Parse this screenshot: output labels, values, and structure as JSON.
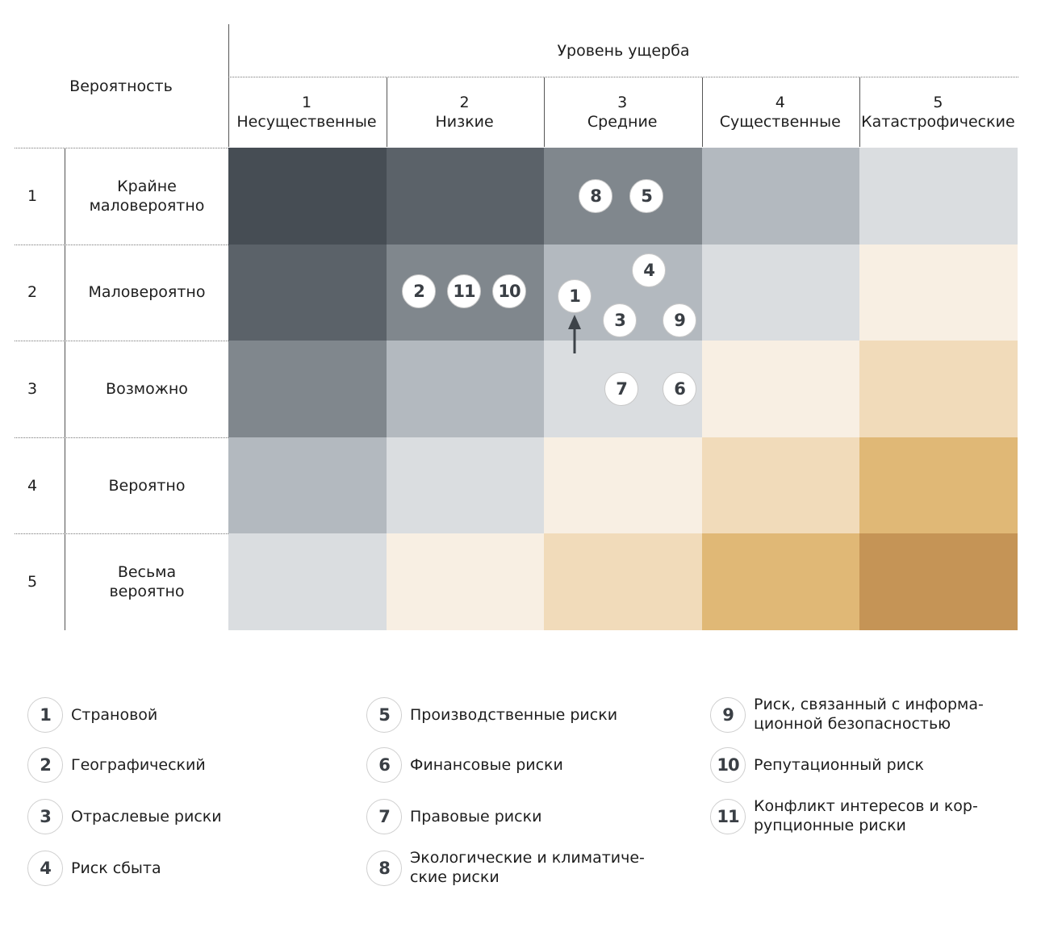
{
  "header": {
    "probability_title": "Вероятность",
    "damage_title": "Уровень ущерба"
  },
  "columns": [
    {
      "num": "1",
      "label": "Несущественные"
    },
    {
      "num": "2",
      "label": "Низкие"
    },
    {
      "num": "3",
      "label": "Средние"
    },
    {
      "num": "4",
      "label": "Существенные"
    },
    {
      "num": "5",
      "label": "Катастрофические"
    }
  ],
  "rows": [
    {
      "num": "1",
      "label_lines": [
        "Крайне",
        "маловероятно"
      ]
    },
    {
      "num": "2",
      "label_lines": [
        "Маловероятно"
      ]
    },
    {
      "num": "3",
      "label_lines": [
        "Возможно"
      ]
    },
    {
      "num": "4",
      "label_lines": [
        "Вероятно"
      ]
    },
    {
      "num": "5",
      "label_lines": [
        "Весьма",
        "вероятно"
      ]
    }
  ],
  "cell_colors": [
    [
      "#464d54",
      "#5b6269",
      "#80878d",
      "#b3b9bf",
      "#dadde0"
    ],
    [
      "#5b6269",
      "#80878d",
      "#b3b9bf",
      "#dadde0",
      "#f8efe3"
    ],
    [
      "#80878d",
      "#b3b9bf",
      "#dadde0",
      "#f8efe3",
      "#f1dbba"
    ],
    [
      "#b3b9bf",
      "#dadde0",
      "#f8efe3",
      "#f1dbba",
      "#e0b876"
    ],
    [
      "#dadde0",
      "#f8efe3",
      "#f1dbba",
      "#e0b876",
      "#c59456"
    ]
  ],
  "risks": [
    {
      "id": "1",
      "name": "Страновой",
      "row": 2,
      "col": 3
    },
    {
      "id": "2",
      "name": "Географический",
      "row": 2,
      "col": 2
    },
    {
      "id": "3",
      "name": "Отраслевые риски",
      "row": 2,
      "col": 3
    },
    {
      "id": "4",
      "name": "Риск сбыта",
      "row": 2,
      "col": 3
    },
    {
      "id": "5",
      "name": "Производственные риски",
      "row": 1,
      "col": 3
    },
    {
      "id": "6",
      "name": "Финансовые риски",
      "row": 3,
      "col": 3
    },
    {
      "id": "7",
      "name": "Правовые риски",
      "row": 3,
      "col": 3
    },
    {
      "id": "8",
      "name": "Экологические и климатиче-\nские риски",
      "row": 1,
      "col": 3
    },
    {
      "id": "9",
      "name": "Риск, связанный с информа-\nционной безопасностью",
      "row": 2,
      "col": 3
    },
    {
      "id": "10",
      "name": "Репутационный риск",
      "row": 2,
      "col": 2
    },
    {
      "id": "11",
      "name": "Конфликт интересов и кор-\nрупционные риски",
      "row": 2,
      "col": 2
    }
  ],
  "trend": {
    "risk": "1",
    "direction": "up"
  }
}
